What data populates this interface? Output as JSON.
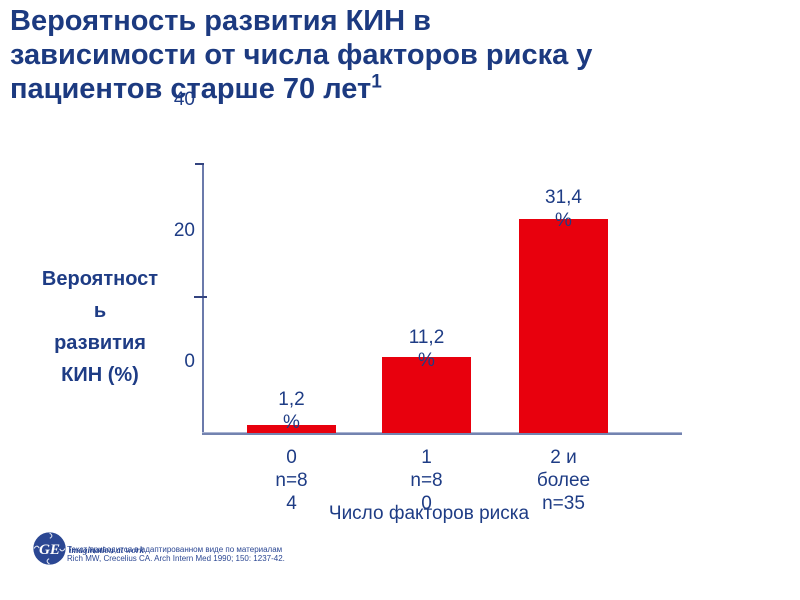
{
  "slide": {
    "title": "Вероятность развития КИН в\nзависимости от числа факторов риска у\nпациентов старше 70 лет",
    "title_superscript": "1"
  },
  "chart_data": {
    "type": "bar",
    "title": "Вероятность развития КИН в зависимости от числа факторов риска у пациентов старше 70 лет",
    "categories": [
      "0",
      "1",
      "2 и более"
    ],
    "category_n": [
      "n=84",
      "n=80",
      "n=35"
    ],
    "values": [
      1.2,
      11.2,
      31.4
    ],
    "value_labels": [
      "1,2 %",
      "11,2 %",
      "31,4 %"
    ],
    "xlabel": "Число факторов риска",
    "ylabel": "Вероятность развития КИН (%)",
    "ylim": [
      0,
      40
    ],
    "yticks": [
      0,
      20,
      40
    ],
    "grid": false,
    "legend": false,
    "bar_color": "#e8000d"
  },
  "chart_display": {
    "y_tick_labels": [
      "40",
      "20",
      "0"
    ],
    "y_axis_title_wrapped": "Вероятност\nь\nразвития\nКИН (%)",
    "value_labels_wrapped": [
      "1,2\n%",
      "11,2\n%",
      "31,4\n%"
    ],
    "category_labels_wrapped": [
      "0\nn=8\n4",
      "1\nn=8\n0",
      "2 и\nболее\nn=35"
    ],
    "x_axis_title": "Число факторов риска"
  },
  "footer": {
    "logo": "GE",
    "tagline": "imagination at work",
    "source_line1": "Текст приводится в адаптированном виде по материалам",
    "source_line2": "Rich MW, Crecelius CA. Arch Intern Med 1990; 150: 1237-42."
  },
  "colors": {
    "title_blue": "#1c3a80",
    "chart_text_blue": "#1e3c85",
    "bar_red": "#e8000d",
    "axis_line": "#6b7aab",
    "logo_blue": "#2b4793"
  }
}
